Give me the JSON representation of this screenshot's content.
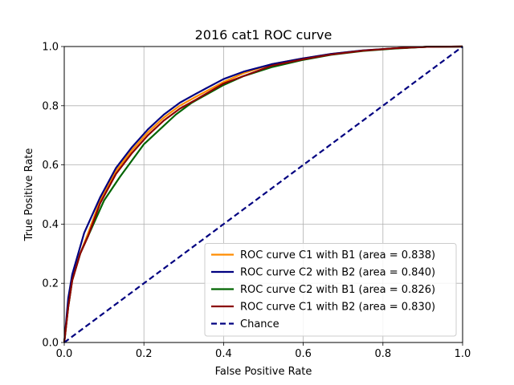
{
  "chart_data": {
    "type": "line",
    "title": "2016 cat1 ROC curve",
    "xlabel": "False Positive Rate",
    "ylabel": "True Positive Rate",
    "xlim": [
      0,
      1
    ],
    "ylim": [
      0,
      1
    ],
    "grid": true,
    "legend_position": "bottom-right",
    "x_ticks": [
      "0.0",
      "0.2",
      "0.4",
      "0.6",
      "0.8",
      "1.0"
    ],
    "y_ticks": [
      "0.0",
      "0.2",
      "0.4",
      "0.6",
      "0.8",
      "1.0"
    ],
    "series": [
      {
        "name": "ROC curve C1 with B1 (area = 0.838)",
        "color": "#ff8c00",
        "dash": "solid",
        "x": [
          0,
          0.01,
          0.02,
          0.04,
          0.06,
          0.09,
          0.13,
          0.17,
          0.21,
          0.25,
          0.29,
          0.33,
          0.4,
          0.45,
          0.52,
          0.6,
          0.67,
          0.75,
          0.83,
          0.91,
          1.0
        ],
        "y": [
          0,
          0.12,
          0.21,
          0.3,
          0.37,
          0.48,
          0.58,
          0.65,
          0.71,
          0.76,
          0.8,
          0.83,
          0.88,
          0.91,
          0.94,
          0.96,
          0.975,
          0.987,
          0.994,
          0.999,
          1.0
        ]
      },
      {
        "name": "ROC curve C2 with B2 (area = 0.840)",
        "color": "#000080",
        "dash": "solid",
        "x": [
          0,
          0.01,
          0.02,
          0.05,
          0.09,
          0.13,
          0.17,
          0.21,
          0.25,
          0.29,
          0.33,
          0.4,
          0.45,
          0.52,
          0.6,
          0.67,
          0.75,
          0.83,
          0.91,
          1.0
        ],
        "y": [
          0,
          0.15,
          0.23,
          0.37,
          0.49,
          0.59,
          0.66,
          0.72,
          0.77,
          0.81,
          0.84,
          0.89,
          0.915,
          0.94,
          0.96,
          0.975,
          0.987,
          0.994,
          0.999,
          1.0
        ]
      },
      {
        "name": "ROC curve C2 with B1 (area = 0.826)",
        "color": "#006400",
        "dash": "solid",
        "x": [
          0,
          0.01,
          0.02,
          0.04,
          0.06,
          0.1,
          0.14,
          0.2,
          0.28,
          0.32,
          0.4,
          0.45,
          0.52,
          0.6,
          0.67,
          0.75,
          0.83,
          0.91,
          1.0
        ],
        "y": [
          0,
          0.12,
          0.21,
          0.3,
          0.36,
          0.48,
          0.56,
          0.67,
          0.77,
          0.81,
          0.87,
          0.9,
          0.93,
          0.955,
          0.972,
          0.985,
          0.993,
          0.999,
          1.0
        ]
      },
      {
        "name": "ROC curve C1 with B2 (area = 0.830)",
        "color": "#8b0000",
        "dash": "solid",
        "x": [
          0,
          0.01,
          0.02,
          0.04,
          0.06,
          0.09,
          0.13,
          0.17,
          0.21,
          0.25,
          0.29,
          0.33,
          0.4,
          0.45,
          0.52,
          0.6,
          0.67,
          0.75,
          0.83,
          0.91,
          1.0
        ],
        "y": [
          0,
          0.12,
          0.21,
          0.3,
          0.36,
          0.47,
          0.57,
          0.64,
          0.7,
          0.75,
          0.79,
          0.82,
          0.875,
          0.9,
          0.935,
          0.957,
          0.973,
          0.986,
          0.994,
          0.999,
          1.0
        ]
      },
      {
        "name": "Chance",
        "color": "#000080",
        "dash": "dashed",
        "x": [
          0,
          1
        ],
        "y": [
          0,
          1
        ]
      }
    ]
  }
}
